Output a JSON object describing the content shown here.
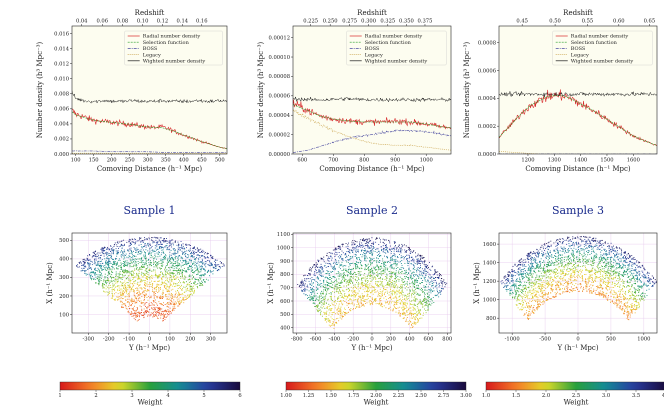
{
  "chart_data": [
    {
      "type": "line",
      "id": "density-1",
      "title": "",
      "xlabel": "Comoving Distance (h⁻¹ Mpc)",
      "ylabel": "Number density (h³ Mpc⁻³)",
      "top_label": "Redshift",
      "xlim": [
        90,
        520
      ],
      "ylim": [
        0,
        0.017
      ],
      "x_ticks": [
        100,
        150,
        200,
        250,
        300,
        350,
        400,
        450,
        500
      ],
      "y_ticks": [
        0.0,
        0.002,
        0.004,
        0.006,
        0.008,
        0.01,
        0.012,
        0.014,
        0.016
      ],
      "y_tick_labels": [
        "0.000",
        "0.002",
        "0.004",
        "0.006",
        "0.008",
        "0.010",
        "0.012",
        "0.014",
        "0.016"
      ],
      "top_ticks": [
        {
          "pos": 117,
          "label": "0.04"
        },
        {
          "pos": 174,
          "label": "0.06"
        },
        {
          "pos": 230,
          "label": "0.08"
        },
        {
          "pos": 286,
          "label": "0.10"
        },
        {
          "pos": 341,
          "label": "0.12"
        },
        {
          "pos": 396,
          "label": "0.14"
        },
        {
          "pos": 450,
          "label": "0.16"
        }
      ],
      "legend": {
        "placement": "top-right",
        "entries": [
          "Radial number density",
          "Selection function",
          "BOSS",
          "Legacy",
          "Wighted number density"
        ]
      },
      "series": [
        {
          "name": "Radial number density",
          "color": "#d62728",
          "x": [
            90,
            100,
            120,
            140,
            160,
            180,
            200,
            220,
            240,
            260,
            280,
            300,
            320,
            340,
            360,
            380,
            400,
            420,
            440,
            460,
            480,
            500,
            520
          ],
          "y": [
            0.0058,
            0.0053,
            0.005,
            0.0046,
            0.0044,
            0.0043,
            0.0042,
            0.0041,
            0.004,
            0.0039,
            0.0037,
            0.0036,
            0.0035,
            0.0036,
            0.0033,
            0.0029,
            0.0025,
            0.0022,
            0.0018,
            0.0015,
            0.0012,
            0.0009,
            0.0007
          ]
        },
        {
          "name": "Selection function",
          "color": "#2ca02c",
          "x": [
            90,
            100,
            120,
            140,
            160,
            180,
            200,
            220,
            240,
            260,
            280,
            300,
            320,
            340,
            360,
            380,
            400,
            420,
            440,
            460,
            480,
            500,
            520
          ],
          "y": [
            0.0056,
            0.0052,
            0.0049,
            0.0046,
            0.0044,
            0.0043,
            0.0042,
            0.0041,
            0.004,
            0.0039,
            0.0037,
            0.0036,
            0.0035,
            0.0035,
            0.0032,
            0.0029,
            0.0025,
            0.0022,
            0.0018,
            0.0015,
            0.0012,
            0.0009,
            0.0007
          ]
        },
        {
          "name": "BOSS",
          "color": "#4a4aa0",
          "x": [
            90,
            150,
            200,
            250,
            300,
            350,
            400,
            450,
            500,
            520
          ],
          "y": [
            0.0004,
            0.0004,
            0.0003,
            0.0003,
            0.0003,
            0.0002,
            0.0002,
            0.0002,
            0.0002,
            0.0002
          ]
        },
        {
          "name": "Legacy",
          "color": "#c9a24a",
          "x": [
            90,
            150,
            200,
            250,
            300,
            350,
            400,
            450,
            500,
            520
          ],
          "y": [
            0.0001,
            0.0001,
            0.0001,
            0.0001,
            0.0001,
            0.0001,
            0.0001,
            0.0001,
            0.0001,
            0.0001
          ]
        },
        {
          "name": "Wighted number density",
          "color": "#1a1a1a",
          "x": [
            90,
            100,
            120,
            140,
            160,
            180,
            200,
            220,
            240,
            260,
            280,
            300,
            320,
            340,
            360,
            380,
            400,
            420,
            440,
            460,
            480,
            500,
            520
          ],
          "y": [
            0.0082,
            0.0074,
            0.0071,
            0.007,
            0.007,
            0.0071,
            0.007,
            0.007,
            0.007,
            0.0071,
            0.007,
            0.007,
            0.007,
            0.0071,
            0.007,
            0.007,
            0.007,
            0.007,
            0.0071,
            0.007,
            0.007,
            0.0071,
            0.007
          ]
        }
      ]
    },
    {
      "type": "line",
      "id": "density-2",
      "title": "",
      "xlabel": "Comoving Distance (h⁻¹ Mpc)",
      "ylabel": "Number density (h³ Mpc⁻³)",
      "top_label": "Redshift",
      "xlim": [
        570,
        1080
      ],
      "ylim": [
        0,
        0.000132
      ],
      "x_ticks": [
        600,
        700,
        800,
        900,
        1000
      ],
      "y_ticks": [
        0.0,
        2e-05,
        4e-05,
        6e-05,
        8e-05,
        0.0001,
        0.00012
      ],
      "y_tick_labels": [
        "0.00000",
        "0.00002",
        "0.00004",
        "0.00006",
        "0.00008",
        "0.00010",
        "0.00012"
      ],
      "top_ticks": [
        {
          "pos": 627,
          "label": "0.225"
        },
        {
          "pos": 690,
          "label": "0.250"
        },
        {
          "pos": 753,
          "label": "0.275"
        },
        {
          "pos": 814,
          "label": "0.300"
        },
        {
          "pos": 876,
          "label": "0.325"
        },
        {
          "pos": 936,
          "label": "0.350"
        },
        {
          "pos": 996,
          "label": "0.375"
        }
      ],
      "legend": {
        "placement": "top-right",
        "entries": [
          "Radial number density",
          "Selection function",
          "BOSS",
          "Legacy",
          "Wighted number density"
        ]
      },
      "series": [
        {
          "name": "Radial number density",
          "color": "#d62728",
          "x": [
            570,
            600,
            630,
            660,
            700,
            750,
            800,
            850,
            900,
            950,
            1000,
            1050,
            1080
          ],
          "y": [
            5.2e-05,
            4.8e-05,
            4.3e-05,
            3.9e-05,
            3.6e-05,
            3.4e-05,
            3.3e-05,
            3.3e-05,
            3.4e-05,
            3.3e-05,
            3.1e-05,
            2.8e-05,
            2.7e-05
          ]
        },
        {
          "name": "Selection function",
          "color": "#2ca02c",
          "x": [
            570,
            600,
            630,
            660,
            700,
            750,
            800,
            850,
            900,
            950,
            1000,
            1050,
            1080
          ],
          "y": [
            5.1e-05,
            4.7e-05,
            4.3e-05,
            3.9e-05,
            3.6e-05,
            3.4e-05,
            3.3e-05,
            3.3e-05,
            3.3e-05,
            3.3e-05,
            3.1e-05,
            2.8e-05,
            2.7e-05
          ]
        },
        {
          "name": "BOSS",
          "color": "#4a4aa0",
          "x": [
            570,
            620,
            680,
            720,
            780,
            840,
            900,
            960,
            1000,
            1040,
            1080
          ],
          "y": [
            1.5e-06,
            4e-06,
            1e-05,
            1.4e-05,
            1.8e-05,
            2.1e-05,
            2.4e-05,
            2.4e-05,
            2.3e-05,
            2.1e-05,
            1.9e-05
          ]
        },
        {
          "name": "Legacy",
          "color": "#c9a24a",
          "x": [
            570,
            600,
            650,
            700,
            750,
            800,
            850,
            900,
            950,
            1000,
            1050,
            1080
          ],
          "y": [
            4.5e-05,
            4e-05,
            3.2e-05,
            2.4e-05,
            1.8e-05,
            1.3e-05,
            1e-05,
            9e-06,
            9e-06,
            7e-06,
            5e-06,
            4e-06
          ]
        },
        {
          "name": "Wighted number density",
          "color": "#1a1a1a",
          "x": [
            570,
            620,
            680,
            740,
            800,
            860,
            920,
            980,
            1040,
            1080
          ],
          "y": [
            5.7e-05,
            5.6e-05,
            5.6e-05,
            5.7e-05,
            5.6e-05,
            5.6e-05,
            5.6e-05,
            5.6e-05,
            5.6e-05,
            5.6e-05
          ]
        }
      ]
    },
    {
      "type": "line",
      "id": "density-3",
      "title": "",
      "xlabel": "Comoving Distance (h⁻¹ Mpc)",
      "ylabel": "Number density (h³ Mpc⁻³)",
      "top_label": "Redshift",
      "xlim": [
        1090,
        1690
      ],
      "ylim": [
        0,
        0.00092
      ],
      "x_ticks": [
        1200,
        1300,
        1400,
        1500,
        1600
      ],
      "y_ticks": [
        0.0,
        0.0002,
        0.0004,
        0.0006,
        0.0008
      ],
      "y_tick_labels": [
        "0.0000",
        "0.0002",
        "0.0004",
        "0.0006",
        "0.0008"
      ],
      "top_ticks": [
        {
          "pos": 1178,
          "label": "0.45"
        },
        {
          "pos": 1303,
          "label": "0.50"
        },
        {
          "pos": 1426,
          "label": "0.55"
        },
        {
          "pos": 1545,
          "label": "0.60"
        },
        {
          "pos": 1661,
          "label": "0.65"
        }
      ],
      "legend": {
        "placement": "top-right",
        "entries": [
          "Radial number density",
          "Selection function",
          "BOSS",
          "Legacy",
          "Wighted number density"
        ]
      },
      "series": [
        {
          "name": "Radial number density",
          "color": "#d62728",
          "x": [
            1090,
            1120,
            1150,
            1180,
            1210,
            1240,
            1270,
            1300,
            1330,
            1360,
            1400,
            1450,
            1500,
            1550,
            1600,
            1650,
            1690
          ],
          "y": [
            0.00012,
            0.00018,
            0.00024,
            0.0003,
            0.00035,
            0.00038,
            0.00041,
            0.00042,
            0.00042,
            0.0004,
            0.00036,
            0.00031,
            0.00025,
            0.00019,
            0.00013,
            9e-05,
            6e-05
          ]
        },
        {
          "name": "Selection function",
          "color": "#2ca02c",
          "x": [
            1090,
            1120,
            1150,
            1180,
            1210,
            1240,
            1270,
            1300,
            1330,
            1360,
            1400,
            1450,
            1500,
            1550,
            1600,
            1650,
            1690
          ],
          "y": [
            0.00012,
            0.00018,
            0.00024,
            0.0003,
            0.00035,
            0.00038,
            0.00041,
            0.00042,
            0.00042,
            0.0004,
            0.00036,
            0.00031,
            0.00025,
            0.00019,
            0.00013,
            9e-05,
            6e-05
          ]
        },
        {
          "name": "BOSS",
          "color": "#4a4aa0",
          "x": [
            1090,
            1300,
            1500,
            1690
          ],
          "y": [
            0.0,
            0.0,
            0.0,
            0.0
          ]
        },
        {
          "name": "Legacy",
          "color": "#c9a24a",
          "x": [
            1090,
            1120,
            1160,
            1200,
            1240
          ],
          "y": [
            2e-05,
            1.5e-05,
            1e-05,
            5e-06,
            0.0
          ]
        },
        {
          "name": "Wighted number density",
          "color": "#1a1a1a",
          "x": [
            1090,
            1200,
            1300,
            1400,
            1500,
            1600,
            1690
          ],
          "y": [
            0.00043,
            0.00043,
            0.00043,
            0.00043,
            0.00043,
            0.00043,
            0.00043
          ]
        }
      ]
    },
    {
      "type": "scatter",
      "id": "sample-1",
      "title": "Sample 1",
      "xlabel": "Y (h⁻¹ Mpc)",
      "ylabel": "X (h⁻¹ Mpc)",
      "xlim": [
        -380,
        380
      ],
      "ylim": [
        0,
        540
      ],
      "x_ticks": [
        -300,
        -200,
        -100,
        0,
        100,
        200,
        300
      ],
      "y_ticks": [
        100,
        200,
        300,
        400,
        500
      ],
      "wedge": {
        "r_min": 90,
        "r_max": 520,
        "half_angle_deg": 45,
        "mean_weight_inner": 1.5,
        "mean_weight_outer": 5.5
      },
      "colorbar": {
        "label": "Weight",
        "min": 1,
        "max": 6,
        "ticks": [
          1,
          2,
          3,
          4,
          5,
          6
        ],
        "tick_labels": [
          "1",
          "2",
          "3",
          "4",
          "5",
          "6"
        ],
        "colormap": "jet-like"
      }
    },
    {
      "type": "scatter",
      "id": "sample-2",
      "title": "Sample 2",
      "xlabel": "Y (h⁻¹ Mpc)",
      "ylabel": "X (h⁻¹ Mpc)",
      "xlim": [
        -840,
        840
      ],
      "ylim": [
        360,
        1110
      ],
      "x_ticks": [
        -800,
        -600,
        -400,
        -200,
        0,
        200,
        400,
        600,
        800
      ],
      "y_ticks": [
        400,
        500,
        600,
        700,
        800,
        900,
        1000,
        1100
      ],
      "wedge": {
        "r_min": 570,
        "r_max": 1080,
        "half_angle_deg": 48,
        "mean_weight_inner": 1.5,
        "mean_weight_outer": 2.9
      },
      "colorbar": {
        "label": "Weight",
        "min": 1.0,
        "max": 3.0,
        "ticks": [
          1.0,
          1.25,
          1.5,
          1.75,
          2.0,
          2.25,
          2.5,
          2.75,
          3.0
        ],
        "tick_labels": [
          "1.00",
          "1.25",
          "1.50",
          "1.75",
          "2.00",
          "2.25",
          "2.50",
          "2.75",
          "3.00"
        ],
        "colormap": "jet-like"
      }
    },
    {
      "type": "scatter",
      "id": "sample-3",
      "title": "Sample 3",
      "xlabel": "Y (h⁻¹ Mpc)",
      "ylabel": "X (h⁻¹ Mpc)",
      "xlim": [
        -1200,
        1200
      ],
      "ylim": [
        640,
        1720
      ],
      "x_ticks": [
        -1000,
        -500,
        0,
        500,
        1000
      ],
      "y_ticks": [
        800,
        1000,
        1200,
        1400,
        1600
      ],
      "wedge": {
        "r_min": 1090,
        "r_max": 1690,
        "half_angle_deg": 45,
        "mean_weight_inner": 1.6,
        "mean_weight_outer": 3.8
      },
      "colorbar": {
        "label": "Weight",
        "min": 1.0,
        "max": 4.0,
        "ticks": [
          1.0,
          1.5,
          2.0,
          2.5,
          3.0,
          3.5,
          4.0
        ],
        "tick_labels": [
          "1.0",
          "1.5",
          "2.0",
          "2.5",
          "3.0",
          "3.5",
          "4.0"
        ],
        "colormap": "jet-like"
      }
    }
  ]
}
